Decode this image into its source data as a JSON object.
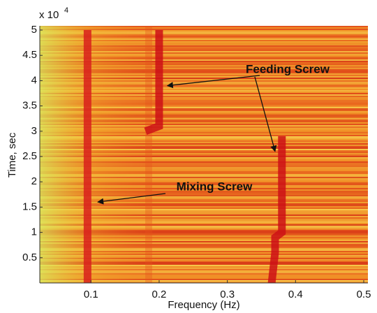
{
  "chart_data": {
    "type": "spectrogram",
    "xlabel": "Frequency (Hz)",
    "ylabel": "Time, sec",
    "y_multiplier": {
      "base": "x 10",
      "exponent": "4"
    },
    "xlim": [
      0.025,
      0.5
    ],
    "ylim": [
      0,
      50000
    ],
    "xticks": [
      0.1,
      0.2,
      0.3,
      0.4,
      0.5
    ],
    "yticks": [
      {
        "value": 5000,
        "label": "0.5"
      },
      {
        "value": 10000,
        "label": "1"
      },
      {
        "value": 15000,
        "label": "1.5"
      },
      {
        "value": 20000,
        "label": "2"
      },
      {
        "value": 25000,
        "label": "2.5"
      },
      {
        "value": 30000,
        "label": "3"
      },
      {
        "value": 35000,
        "label": "3.5"
      },
      {
        "value": 40000,
        "label": "4"
      },
      {
        "value": 45000,
        "label": "4.5"
      },
      {
        "value": 50000,
        "label": "5"
      }
    ],
    "series": [
      {
        "color": "#d8201c",
        "x": [
          0.095,
          0.095
        ],
        "y": [
          0,
          50000
        ]
      },
      {
        "color": "#cc1016",
        "x": [
          0.2,
          0.2,
          0.18
        ],
        "y": [
          50000,
          31000,
          30000
        ]
      },
      {
        "color": "#cc1016",
        "x": [
          0.38,
          0.38,
          0.37,
          0.37,
          0.365
        ],
        "y": [
          29000,
          10000,
          9000,
          6000,
          0
        ]
      }
    ],
    "annotations": [
      {
        "text": "Feeding Screw",
        "x": 0.212,
        "y": 39000
      },
      {
        "text": "Feeding Screw",
        "x": 0.37,
        "y": 26000
      },
      {
        "text": "Mixing Screw",
        "x": 0.11,
        "y": 16000
      }
    ]
  }
}
